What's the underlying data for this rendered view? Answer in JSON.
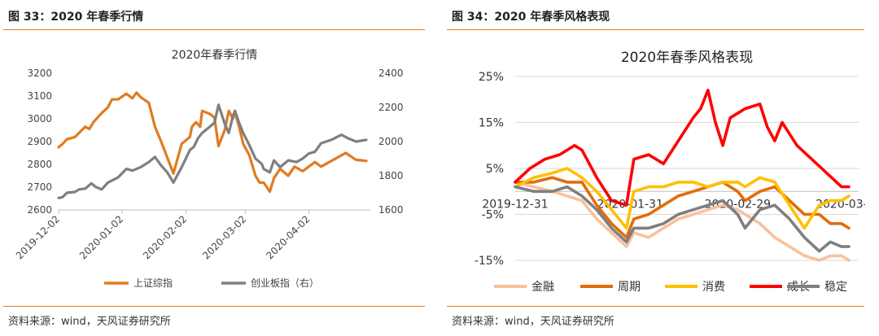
{
  "left": {
    "figure_title": "图 33：2020 年春季行情",
    "source": "资料来源：wind，天风证券研究所"
  },
  "right": {
    "figure_title": "图 34：2020 年春季风格表现",
    "source": "资料来源：wind，天风证券研究所"
  },
  "colors": {
    "accent_rule": "#e67e22",
    "shanghai": "#e07b20",
    "chinext": "#7f7f7f",
    "finance": "#f8c19c",
    "cyclical": "#e46c0a",
    "consumer": "#ffc000",
    "growth": "#ff0000",
    "stable": "#7f7f7f"
  },
  "chart_data": [
    {
      "type": "line",
      "title": "2020年春季行情",
      "x_ticks": [
        "2019-12-02",
        "2020-01-02",
        "2020-02-02",
        "2020-03-02",
        "2020-04-02"
      ],
      "y_left_ticks": [
        "3200",
        "3100",
        "3000",
        "2900",
        "2800",
        "2700",
        "2600"
      ],
      "y_right_ticks": [
        "2400",
        "2200",
        "2000",
        "1800",
        "1600"
      ],
      "ylim_left": [
        2600,
        3200
      ],
      "ylim_right": [
        1600,
        2400
      ],
      "x_domain_days": [
        0,
        152
      ],
      "series": [
        {
          "name": "上证综指",
          "axis": "left",
          "color": "#e07b20",
          "x": [
            0,
            2,
            4,
            8,
            13,
            15,
            17,
            21,
            24,
            26,
            29,
            33,
            36,
            38,
            40,
            44,
            47,
            50,
            53,
            56,
            60,
            64,
            65,
            67,
            69,
            70,
            74,
            76,
            78,
            81,
            83,
            85,
            86,
            88,
            90,
            93,
            96,
            98,
            100,
            103,
            105,
            108,
            112,
            115,
            119,
            122,
            125,
            128,
            133,
            140,
            145,
            150
          ],
          "y": [
            2875,
            2890,
            2910,
            2920,
            2965,
            2955,
            2985,
            3025,
            3050,
            3085,
            3085,
            3110,
            3090,
            3115,
            3095,
            3070,
            2965,
            2900,
            2830,
            2760,
            2890,
            2920,
            2965,
            2985,
            2965,
            3035,
            3020,
            3005,
            2880,
            2950,
            3035,
            3000,
            3030,
            2965,
            2890,
            2840,
            2750,
            2720,
            2720,
            2680,
            2740,
            2780,
            2750,
            2790,
            2770,
            2790,
            2810,
            2790,
            2815,
            2850,
            2820,
            2815
          ]
        },
        {
          "name": "创业板指（右）",
          "axis": "right",
          "color": "#7f7f7f",
          "x": [
            0,
            2,
            4,
            8,
            10,
            13,
            16,
            18,
            21,
            24,
            29,
            33,
            36,
            40,
            44,
            47,
            50,
            53,
            56,
            60,
            64,
            66,
            68,
            70,
            74,
            76,
            78,
            81,
            83,
            85,
            86,
            88,
            90,
            93,
            96,
            99,
            100,
            103,
            105,
            108,
            112,
            116,
            119,
            122,
            125,
            128,
            133,
            138,
            141,
            145,
            150
          ],
          "y": [
            1670,
            1675,
            1700,
            1705,
            1720,
            1725,
            1755,
            1735,
            1720,
            1760,
            1790,
            1840,
            1830,
            1850,
            1880,
            1910,
            1860,
            1820,
            1760,
            1850,
            1950,
            1970,
            2020,
            2050,
            2090,
            2110,
            2215,
            2105,
            2050,
            2150,
            2180,
            2110,
            2050,
            1980,
            1900,
            1870,
            1840,
            1820,
            1890,
            1850,
            1890,
            1880,
            1900,
            1930,
            1940,
            1990,
            2010,
            2040,
            2020,
            2000,
            2010
          ]
        }
      ],
      "legend": [
        "上证综指",
        "创业板指（右）"
      ],
      "legend_position": "bottom"
    },
    {
      "type": "line",
      "title": "2020年春季风格表现",
      "x_ticks": [
        "2019-12-31",
        "2020-01-31",
        "2020-02-29",
        "2020-03-"
      ],
      "y_ticks": [
        "25%",
        "15%",
        "5%",
        "-5%",
        "-15%"
      ],
      "ylim": [
        -15,
        25
      ],
      "x_domain_days": [
        0,
        90
      ],
      "series": [
        {
          "name": "金融",
          "color": "#f8c19c",
          "x": [
            0,
            5,
            10,
            14,
            18,
            22,
            26,
            30,
            32,
            36,
            40,
            44,
            48,
            52,
            56,
            60,
            62,
            66,
            70,
            74,
            78,
            82,
            85,
            88,
            90
          ],
          "y": [
            2,
            1,
            0,
            -1,
            -2,
            -6,
            -9,
            -12,
            -9,
            -10,
            -8,
            -6,
            -5,
            -4,
            -3,
            -4,
            -5,
            -7,
            -10,
            -12,
            -14,
            -15,
            -14,
            -14,
            -15
          ]
        },
        {
          "name": "周期",
          "color": "#e46c0a",
          "x": [
            0,
            5,
            10,
            14,
            18,
            22,
            26,
            30,
            32,
            36,
            40,
            44,
            48,
            52,
            56,
            60,
            62,
            66,
            70,
            74,
            78,
            82,
            85,
            88,
            90
          ],
          "y": [
            2,
            2,
            3,
            2,
            2,
            -3,
            -7,
            -10,
            -6,
            -5,
            -3,
            -1,
            0,
            1,
            2,
            0,
            -2,
            0,
            1,
            -2,
            -5,
            -5,
            -7,
            -7,
            -8
          ]
        },
        {
          "name": "消费",
          "color": "#ffc000",
          "x": [
            0,
            5,
            10,
            14,
            18,
            22,
            26,
            30,
            32,
            36,
            40,
            44,
            48,
            52,
            56,
            60,
            62,
            66,
            70,
            74,
            78,
            82,
            85,
            88,
            90
          ],
          "y": [
            1,
            3,
            4,
            5,
            3,
            0,
            -4,
            -8,
            0,
            1,
            1,
            2,
            2,
            1,
            2,
            2,
            1,
            3,
            2,
            -3,
            -8,
            -3,
            -2,
            -2,
            -1
          ]
        },
        {
          "name": "成长",
          "color": "#ff0000",
          "x": [
            0,
            4,
            8,
            12,
            16,
            18,
            22,
            26,
            30,
            32,
            36,
            40,
            44,
            48,
            50,
            52,
            54,
            56,
            58,
            62,
            66,
            68,
            70,
            72,
            76,
            80,
            84,
            88,
            90
          ],
          "y": [
            2,
            5,
            7,
            8,
            10,
            9,
            3,
            -2,
            -3,
            7,
            8,
            6,
            11,
            16,
            18,
            22,
            15,
            10,
            16,
            18,
            19,
            14,
            11,
            15,
            10,
            7,
            4,
            1,
            1
          ]
        },
        {
          "name": "稳定",
          "color": "#7f7f7f",
          "x": [
            0,
            5,
            10,
            14,
            18,
            22,
            26,
            30,
            32,
            36,
            40,
            44,
            48,
            52,
            56,
            60,
            62,
            66,
            70,
            74,
            78,
            82,
            85,
            88,
            90
          ],
          "y": [
            1,
            0,
            0,
            1,
            -1,
            -4,
            -8,
            -11,
            -8,
            -8,
            -7,
            -5,
            -4,
            -3,
            -2,
            -5,
            -8,
            -4,
            -3,
            -6,
            -10,
            -13,
            -11,
            -12,
            -12
          ]
        }
      ],
      "legend": [
        "金融",
        "周期",
        "消费",
        "成长",
        "稳定"
      ],
      "legend_position": "bottom"
    }
  ]
}
